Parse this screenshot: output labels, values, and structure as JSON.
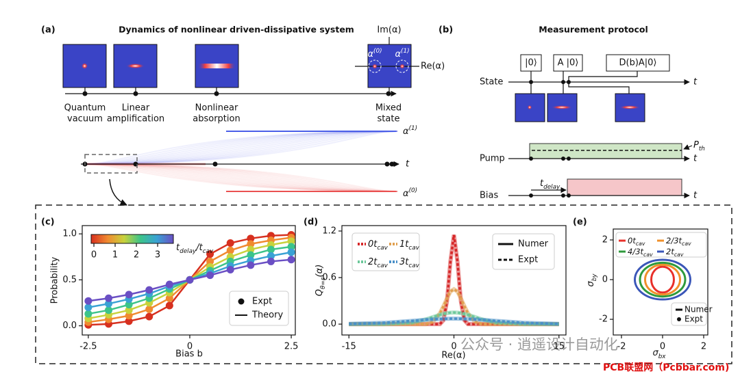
{
  "panel_a": {
    "label": "(a)",
    "title": "Dynamics of nonlinear driven-dissipative system",
    "stages": [
      [
        "Quantum",
        "vacuum"
      ],
      [
        "Linear",
        "amplification"
      ],
      [
        "Nonlinear",
        "absorption"
      ],
      [
        "Mixed",
        "state"
      ]
    ],
    "im_axis": "Im(α)",
    "re_axis": "Re(α)",
    "state_0": [
      "α",
      "(0)"
    ],
    "state_1": [
      "α",
      "(1)"
    ],
    "time_axis": "t",
    "branch_upper": [
      "α",
      "(1)"
    ],
    "branch_lower": [
      "α",
      "(0)"
    ]
  },
  "panel_b": {
    "label": "(b)",
    "title": "Measurement protocol",
    "rows": [
      "State",
      "Pump",
      "Bias"
    ],
    "kets": [
      "|0⟩",
      "A |0⟩",
      "D(b)A|0⟩"
    ],
    "time_axis": "t",
    "threshold": [
      "P",
      "th"
    ],
    "delay": [
      "t",
      "delay"
    ]
  },
  "chart_data": [
    {
      "type": "line",
      "label": "(c)",
      "x": [
        -2.5,
        -2,
        -1.5,
        -1,
        -0.5,
        0,
        0.5,
        1,
        1.5,
        2,
        2.5
      ],
      "series": [
        {
          "color": "#d7301f",
          "values": [
            0.01,
            0.02,
            0.05,
            0.1,
            0.22,
            0.5,
            0.78,
            0.9,
            0.95,
            0.98,
            0.99
          ]
        },
        {
          "color": "#f08a30",
          "values": [
            0.04,
            0.07,
            0.11,
            0.18,
            0.3,
            0.5,
            0.7,
            0.82,
            0.89,
            0.93,
            0.96
          ]
        },
        {
          "color": "#c8d23c",
          "values": [
            0.08,
            0.12,
            0.17,
            0.25,
            0.36,
            0.5,
            0.64,
            0.75,
            0.83,
            0.88,
            0.92
          ]
        },
        {
          "color": "#3cc48a",
          "values": [
            0.13,
            0.17,
            0.23,
            0.3,
            0.4,
            0.5,
            0.6,
            0.7,
            0.77,
            0.83,
            0.86
          ]
        },
        {
          "color": "#3aa2d4",
          "values": [
            0.2,
            0.24,
            0.29,
            0.35,
            0.43,
            0.5,
            0.57,
            0.65,
            0.71,
            0.76,
            0.8
          ]
        },
        {
          "color": "#6a4fc4",
          "values": [
            0.27,
            0.3,
            0.34,
            0.39,
            0.45,
            0.5,
            0.55,
            0.61,
            0.66,
            0.7,
            0.72
          ]
        }
      ],
      "xlim": [
        -2.65,
        2.6
      ],
      "xticks": [
        -2.5,
        0,
        2.5
      ],
      "ylim": [
        -0.1,
        1.09
      ],
      "yticks": [
        {
          "value": 0,
          "label": "0.0"
        },
        0.5,
        {
          "value": 1,
          "label": "1.0"
        }
      ],
      "xlabel": "Bias b",
      "ylabel": "Probability",
      "legend": [
        "Expt",
        "Theory"
      ],
      "colorbar": {
        "lim": [
          -0.13,
          3.74
        ],
        "ticks": [
          0,
          1,
          2,
          3
        ],
        "colors": [
          "#d7301f",
          "#f08a30",
          "#c8d23c",
          "#3cc48a",
          "#3aa2d4",
          "#6a4fc4"
        ],
        "label": [
          "t",
          "delay",
          "/t",
          "cav"
        ]
      }
    },
    {
      "type": "line",
      "label": "(d)",
      "x": [
        -15,
        -10,
        -6,
        -4,
        -3,
        -2,
        -1.5,
        -1,
        -0.5,
        0,
        0.5,
        1,
        1.5,
        2,
        3,
        4,
        6,
        10,
        15
      ],
      "series": [
        {
          "name": [
            "0t",
            "cav"
          ],
          "color": "#d62728",
          "values": [
            0,
            0,
            0,
            0,
            0,
            0,
            0.05,
            0.29,
            0.81,
            1.15,
            0.81,
            0.29,
            0.05,
            0,
            0,
            0,
            0,
            0,
            0
          ]
        },
        {
          "name": [
            "1t",
            "cav"
          ],
          "color": "#e0a050",
          "values": [
            0,
            0,
            0,
            0,
            0.03,
            0.14,
            0.23,
            0.33,
            0.42,
            0.45,
            0.42,
            0.33,
            0.23,
            0.14,
            0.03,
            0,
            0,
            0,
            0
          ]
        },
        {
          "name": [
            "2t",
            "cav"
          ],
          "color": "#6cc89a",
          "values": [
            0,
            0,
            0.02,
            0.061,
            0.091,
            0.12,
            0.132,
            0.141,
            0.148,
            0.15,
            0.148,
            0.141,
            0.132,
            0.12,
            0.091,
            0.061,
            0.02,
            0,
            0
          ]
        },
        {
          "name": [
            "3t",
            "cav"
          ],
          "color": "#4a90c8",
          "values": [
            0.003,
            0.017,
            0.042,
            0.056,
            0.062,
            0.066,
            0.068,
            0.069,
            0.07,
            0.07,
            0.07,
            0.069,
            0.068,
            0.066,
            0.062,
            0.056,
            0.042,
            0.017,
            0.003
          ]
        }
      ],
      "xlim": [
        -16,
        16
      ],
      "xticks": [
        -15,
        0,
        15
      ],
      "ylim": [
        -0.14,
        1.27
      ],
      "yticks": [
        {
          "value": 0,
          "label": "0.0"
        },
        0.6,
        1.2
      ],
      "xlabel": "Re(α)",
      "ylabel": [
        "Q",
        "θ=ε",
        "(α)"
      ],
      "legend": [
        "Numer",
        "Expt"
      ]
    },
    {
      "type": "ellipse",
      "label": "(e)",
      "series": [
        {
          "name": [
            "0t",
            "cav"
          ],
          "color": "#e8302a",
          "rx": 0.55,
          "ry": 0.65
        },
        {
          "name": [
            "2/3t",
            "cav"
          ],
          "color": "#f0902a",
          "rx": 0.85,
          "ry": 0.75
        },
        {
          "name": [
            "4/3t",
            "cav"
          ],
          "color": "#2e9a3c",
          "rx": 1.1,
          "ry": 0.85
        },
        {
          "name": [
            "2t",
            "cav"
          ],
          "color": "#3a56b8",
          "rx": 1.35,
          "ry": 1.0
        }
      ],
      "xlim": [
        -2.4,
        2.2
      ],
      "xticks": [
        -2,
        0,
        2
      ],
      "ylim": [
        -2.79,
        2.55
      ],
      "yticks": [
        -2,
        0,
        2
      ],
      "xlabel": [
        "σ",
        "bx"
      ],
      "ylabel": [
        "σ",
        "by"
      ],
      "legend": [
        "Numer",
        "Expt"
      ]
    }
  ],
  "watermark": [
    "公众号 · 逍遥设计自动化",
    "PCB联盟网（Pcbbar.com)"
  ]
}
